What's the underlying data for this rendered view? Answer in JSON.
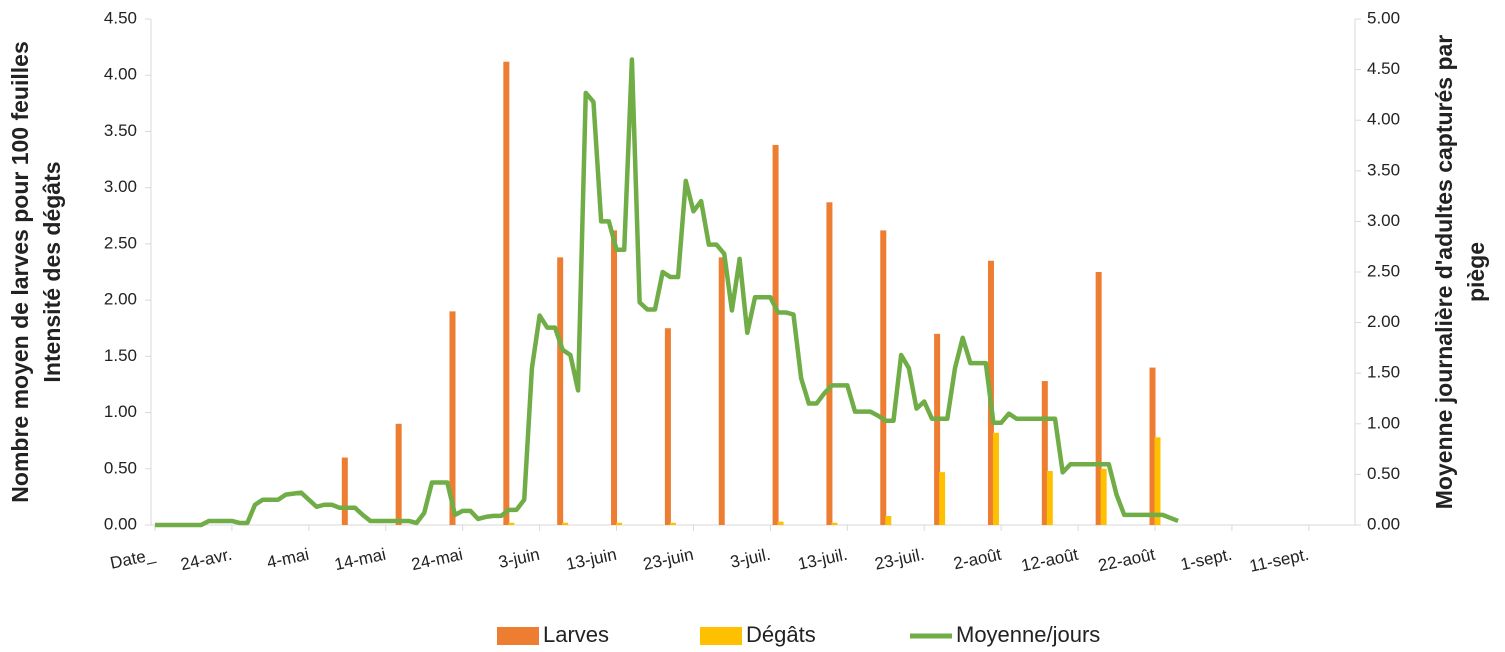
{
  "chart_data": {
    "type": "combo",
    "categories": [
      "Date_",
      null,
      null,
      null,
      null,
      null,
      null,
      null,
      null,
      null,
      "24-avr.",
      null,
      null,
      null,
      null,
      null,
      null,
      null,
      null,
      null,
      "4-mai",
      null,
      null,
      null,
      null,
      null,
      null,
      null,
      null,
      null,
      "14-mai",
      null,
      null,
      null,
      null,
      null,
      null,
      null,
      null,
      null,
      "24-mai",
      null,
      null,
      null,
      null,
      null,
      null,
      null,
      null,
      null,
      "3-juin",
      null,
      null,
      null,
      null,
      null,
      null,
      null,
      null,
      null,
      "13-juin",
      null,
      null,
      null,
      null,
      null,
      null,
      null,
      null,
      null,
      "23-juin",
      null,
      null,
      null,
      null,
      null,
      null,
      null,
      null,
      null,
      "3-juil.",
      null,
      null,
      null,
      null,
      null,
      null,
      null,
      null,
      null,
      "13-juil.",
      null,
      null,
      null,
      null,
      null,
      null,
      null,
      null,
      null,
      "23-juil.",
      null,
      null,
      null,
      null,
      null,
      null,
      null,
      null,
      null,
      "2-août",
      null,
      null,
      null,
      null,
      null,
      null,
      null,
      null,
      null,
      "12-août",
      null,
      null,
      null,
      null,
      null,
      null,
      null,
      null,
      null,
      "22-août",
      null,
      null,
      null,
      null,
      null,
      null,
      null,
      null,
      null,
      "1-sept.",
      null,
      null,
      null,
      null,
      null,
      null,
      null,
      null,
      null,
      "11-sept.",
      null,
      null,
      null,
      null,
      null
    ],
    "series": [
      {
        "name": "Larves",
        "type": "bar",
        "color": "#ED7D31",
        "values": [
          null,
          null,
          null,
          null,
          null,
          null,
          null,
          null,
          null,
          null,
          null,
          null,
          null,
          null,
          null,
          null,
          null,
          null,
          null,
          null,
          null,
          null,
          null,
          null,
          null,
          0.6,
          null,
          null,
          null,
          null,
          null,
          null,
          0.9,
          null,
          null,
          null,
          null,
          null,
          null,
          1.9,
          null,
          null,
          null,
          null,
          null,
          null,
          4.12,
          null,
          null,
          null,
          null,
          null,
          null,
          2.38,
          null,
          null,
          null,
          null,
          null,
          null,
          2.62,
          null,
          null,
          null,
          null,
          null,
          null,
          1.75,
          null,
          null,
          null,
          null,
          null,
          null,
          2.38,
          null,
          null,
          null,
          null,
          null,
          null,
          3.38,
          null,
          null,
          null,
          null,
          null,
          null,
          2.87,
          null,
          null,
          null,
          null,
          null,
          null,
          2.62,
          null,
          null,
          null,
          null,
          null,
          null,
          1.7,
          null,
          null,
          null,
          null,
          null,
          null,
          2.35,
          null,
          null,
          null,
          null,
          null,
          null,
          1.28,
          null,
          null,
          null,
          null,
          null,
          null,
          2.25,
          null,
          null,
          null,
          null,
          null,
          null,
          1.4,
          null,
          null,
          null,
          null,
          null,
          null,
          null,
          null,
          null,
          null,
          null,
          null,
          null,
          null,
          null,
          null,
          null,
          null,
          null,
          null,
          null,
          null,
          null,
          null,
          null
        ]
      },
      {
        "name": "Dégâts",
        "type": "bar",
        "color": "#FFC000",
        "values": [
          null,
          null,
          null,
          null,
          null,
          null,
          null,
          null,
          null,
          null,
          null,
          null,
          null,
          null,
          null,
          null,
          null,
          null,
          null,
          null,
          null,
          null,
          null,
          null,
          null,
          0,
          null,
          null,
          null,
          null,
          null,
          null,
          0,
          null,
          null,
          null,
          null,
          null,
          null,
          0,
          null,
          null,
          null,
          null,
          null,
          null,
          0.02,
          null,
          null,
          null,
          null,
          null,
          null,
          0.02,
          null,
          null,
          null,
          null,
          null,
          null,
          0.02,
          null,
          null,
          null,
          null,
          null,
          null,
          0.02,
          null,
          null,
          null,
          null,
          null,
          null,
          0,
          null,
          null,
          null,
          null,
          null,
          null,
          0.03,
          null,
          null,
          null,
          null,
          null,
          null,
          0.02,
          null,
          null,
          null,
          null,
          null,
          null,
          0.08,
          null,
          null,
          null,
          null,
          null,
          null,
          0.47,
          null,
          null,
          null,
          null,
          null,
          null,
          0.82,
          null,
          null,
          null,
          null,
          null,
          null,
          0.48,
          null,
          null,
          null,
          null,
          null,
          null,
          0.5,
          null,
          null,
          null,
          null,
          null,
          null,
          0.78,
          null,
          null,
          null,
          null,
          null,
          null,
          null,
          null,
          null,
          null,
          null,
          null,
          null,
          null,
          null,
          null,
          null,
          null,
          null,
          null,
          null,
          null,
          null,
          null,
          null
        ]
      },
      {
        "name": "Moyenne/jours",
        "type": "line",
        "axis": "y2",
        "color": "#70AD47",
        "values": [
          0,
          0,
          0,
          0,
          0,
          0,
          0,
          0.04,
          0.04,
          0.04,
          0.04,
          0.02,
          0.02,
          0.2,
          0.25,
          0.25,
          0.25,
          0.3,
          0.31,
          0.32,
          0.25,
          0.18,
          0.2,
          0.2,
          0.17,
          0.17,
          0.17,
          0.1,
          0.04,
          0.04,
          0.04,
          0.04,
          0.04,
          0.04,
          0.02,
          0.12,
          0.42,
          0.42,
          0.42,
          0.1,
          0.14,
          0.14,
          0.06,
          0.08,
          0.09,
          0.09,
          0.15,
          0.15,
          0.25,
          1.55,
          2.07,
          1.95,
          1.95,
          1.73,
          1.68,
          1.33,
          4.27,
          4.18,
          3.0,
          3.0,
          2.72,
          2.72,
          4.6,
          2.2,
          2.13,
          2.13,
          2.5,
          2.45,
          2.45,
          3.4,
          3.1,
          3.2,
          2.77,
          2.77,
          2.68,
          2.12,
          2.63,
          1.9,
          2.25,
          2.25,
          2.25,
          2.1,
          2.1,
          2.08,
          1.45,
          1.2,
          1.2,
          1.3,
          1.38,
          1.38,
          1.38,
          1.12,
          1.12,
          1.12,
          1.08,
          1.03,
          1.03,
          1.68,
          1.55,
          1.15,
          1.22,
          1.05,
          1.05,
          1.05,
          1.55,
          1.85,
          1.6,
          1.6,
          1.6,
          1.01,
          1.01,
          1.1,
          1.05,
          1.05,
          1.05,
          1.05,
          1.05,
          1.05,
          0.52,
          0.6,
          0.6,
          0.6,
          0.6,
          0.6,
          0.6,
          0.3,
          0.1,
          0.1,
          0.1,
          0.1,
          0.1,
          0.1,
          0.07,
          0.04,
          null,
          null,
          null,
          null,
          null,
          null,
          null,
          null,
          null,
          null,
          null,
          null,
          null,
          null,
          null,
          null,
          null,
          null,
          null,
          null,
          null,
          null
        ]
      }
    ],
    "ylabel": [
      "Nombre moyen de larves pour 100 feuilles",
      "Intensité des dégâts"
    ],
    "y2label": [
      "Moyenne journalière d'adultes capturés par",
      "piège"
    ],
    "ylim": [
      0,
      4.5
    ],
    "yticks": [
      {
        "value": 0,
        "label": "0.00"
      },
      {
        "value": 0.5,
        "label": "0.50"
      },
      {
        "value": 1,
        "label": "1.00"
      },
      {
        "value": 1.5,
        "label": "1.50"
      },
      {
        "value": 2,
        "label": "2.00"
      },
      {
        "value": 2.5,
        "label": "2.50"
      },
      {
        "value": 3,
        "label": "3.00"
      },
      {
        "value": 3.5,
        "label": "3.50"
      },
      {
        "value": 4,
        "label": "4.00"
      },
      {
        "value": 4.5,
        "label": "4.50"
      }
    ],
    "y2lim": [
      0,
      5
    ],
    "y2ticks": [
      {
        "value": 0,
        "label": "0.00"
      },
      {
        "value": 0.5,
        "label": "0.50"
      },
      {
        "value": 1,
        "label": "1.00"
      },
      {
        "value": 1.5,
        "label": "1.50"
      },
      {
        "value": 2,
        "label": "2.00"
      },
      {
        "value": 2.5,
        "label": "2.50"
      },
      {
        "value": 3,
        "label": "3.00"
      },
      {
        "value": 3.5,
        "label": "3.50"
      },
      {
        "value": 4,
        "label": "4.00"
      },
      {
        "value": 4.5,
        "label": "4.50"
      },
      {
        "value": 5,
        "label": "5.00"
      }
    ],
    "legend": "bottom"
  }
}
